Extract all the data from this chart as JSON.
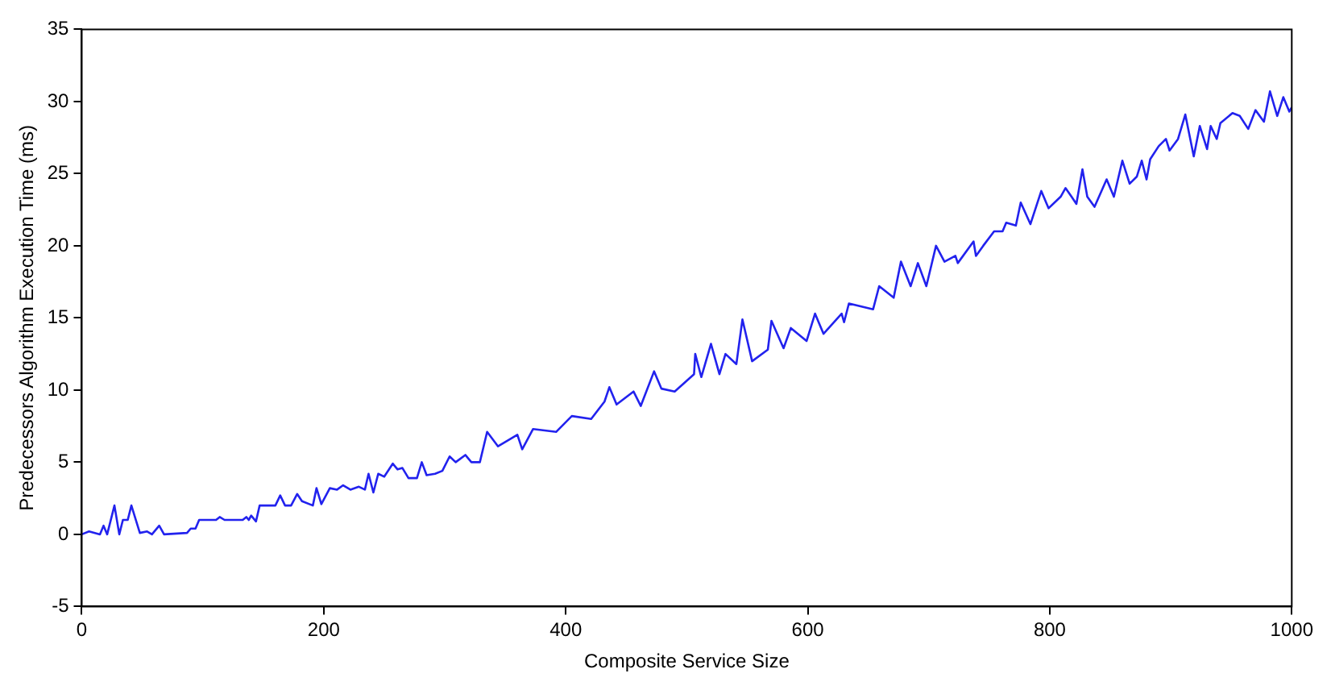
{
  "chart_data": {
    "type": "line",
    "xlabel": "Composite Service Size",
    "ylabel": "Predecessors Algorithm Execution Time (ms)",
    "xlim": [
      0,
      1000
    ],
    "xticks": [
      0,
      200,
      400,
      600,
      800,
      1000
    ],
    "ylim": [
      -5,
      35
    ],
    "yticks": [
      -5,
      0,
      5,
      10,
      15,
      20,
      25,
      30,
      35
    ],
    "grid": false,
    "legend": false,
    "marker": "none",
    "line_style": "solid",
    "series": [
      {
        "color": "#2222ee",
        "x": [
          0,
          6,
          15,
          18,
          21,
          27,
          31,
          34,
          38,
          41,
          48,
          54,
          58,
          64,
          68,
          87,
          90,
          94,
          97,
          111,
          114,
          118,
          133,
          136,
          138,
          140,
          144,
          147,
          160,
          164,
          168,
          173,
          178,
          182,
          191,
          194,
          198,
          205,
          211,
          216,
          222,
          229,
          234,
          237,
          241,
          245,
          250,
          257,
          261,
          265,
          270,
          277,
          281,
          285,
          292,
          298,
          304,
          309,
          317,
          322,
          329,
          335,
          344,
          360,
          364,
          373,
          392,
          405,
          421,
          432,
          436,
          442,
          456,
          462,
          473,
          479,
          490,
          506,
          507,
          512,
          520,
          527,
          532,
          541,
          546,
          554,
          567,
          570,
          580,
          586,
          599,
          606,
          613,
          628,
          630,
          634,
          654,
          659,
          671,
          677,
          685,
          691,
          698,
          706,
          713,
          722,
          724,
          737,
          739,
          745,
          754,
          761,
          764,
          772,
          776,
          784,
          793,
          799,
          809,
          813,
          818,
          822,
          827,
          831,
          837,
          847,
          853,
          860,
          866,
          872,
          876,
          880,
          883,
          890,
          896,
          899,
          906,
          912,
          919,
          924,
          930,
          933,
          938,
          941,
          951,
          957,
          964,
          970,
          977,
          982,
          988,
          993,
          998,
          1000
        ],
        "values": [
          0,
          0.2,
          0,
          0.6,
          0,
          2.0,
          0,
          1.0,
          1.0,
          2.0,
          0.1,
          0.2,
          0,
          0.6,
          0,
          0.1,
          0.4,
          0.4,
          1.0,
          1.0,
          1.2,
          1.0,
          1.0,
          1.2,
          1.0,
          1.3,
          0.9,
          2.0,
          2.0,
          2.7,
          2.0,
          2.0,
          2.8,
          2.3,
          2.0,
          3.2,
          2.1,
          3.2,
          3.1,
          3.4,
          3.1,
          3.3,
          3.1,
          4.2,
          2.9,
          4.2,
          4.0,
          4.9,
          4.5,
          4.6,
          3.9,
          3.9,
          5.0,
          4.1,
          4.2,
          4.4,
          5.4,
          5.0,
          5.5,
          5.0,
          5.0,
          7.1,
          6.1,
          6.9,
          5.9,
          7.3,
          7.1,
          8.2,
          8.0,
          9.2,
          10.2,
          9.0,
          9.9,
          8.9,
          11.3,
          10.1,
          9.9,
          11.1,
          12.5,
          10.9,
          13.2,
          11.1,
          12.5,
          11.8,
          14.9,
          12.0,
          12.8,
          14.8,
          12.9,
          14.3,
          13.4,
          15.3,
          13.9,
          15.3,
          14.7,
          16.0,
          15.6,
          17.2,
          16.4,
          18.9,
          17.2,
          18.8,
          17.2,
          20.0,
          18.9,
          19.3,
          18.8,
          20.3,
          19.3,
          20.0,
          21.0,
          21.0,
          21.6,
          21.4,
          23.0,
          21.5,
          23.8,
          22.6,
          23.4,
          24.0,
          23.4,
          22.9,
          25.3,
          23.4,
          22.7,
          24.6,
          23.4,
          25.9,
          24.3,
          24.8,
          25.9,
          24.6,
          26.0,
          26.9,
          27.4,
          26.6,
          27.4,
          29.1,
          26.2,
          28.3,
          26.7,
          28.3,
          27.4,
          28.5,
          29.2,
          29.0,
          28.1,
          29.4,
          28.6,
          30.7,
          29.0,
          30.3,
          29.3,
          29.6
        ]
      }
    ]
  }
}
